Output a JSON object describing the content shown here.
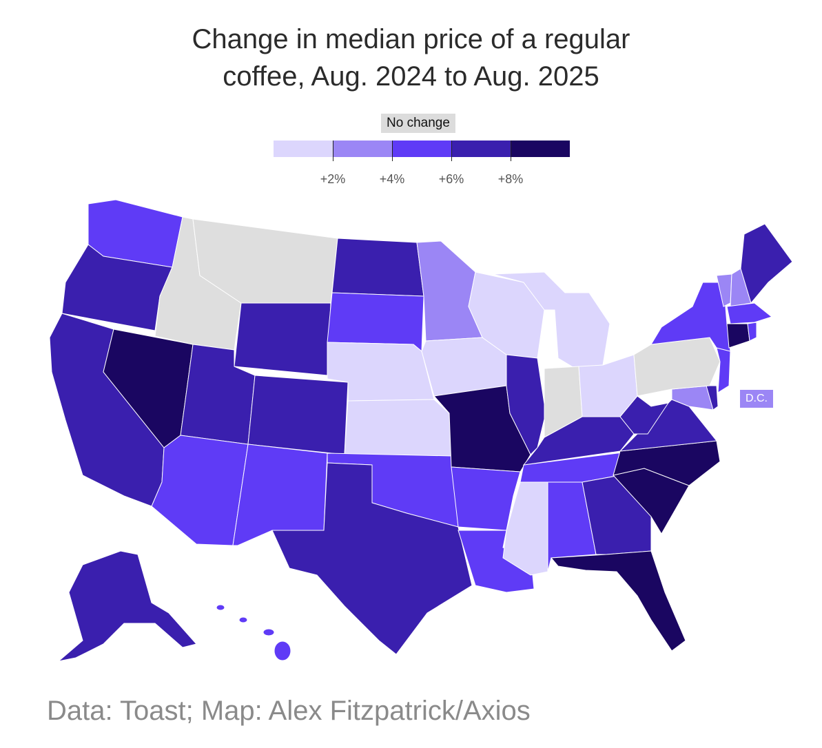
{
  "title": {
    "line1": "Change in median price of a regular",
    "line2": "coffee, Aug. 2024 to Aug. 2025"
  },
  "legend": {
    "no_change_label": "No change",
    "tick_labels": [
      "+2%",
      "+4%",
      "+6%",
      "+8%"
    ],
    "colors": [
      "#dcd6fd",
      "#9b86f5",
      "#5f3bf6",
      "#3a1fae",
      "#1a0661"
    ]
  },
  "colors": {
    "no_change": "#dedede",
    "bin0": "#dcd6fd",
    "bin1": "#9b86f5",
    "bin2": "#5f3bf6",
    "bin3": "#3a1fae",
    "bin4": "#1a0661"
  },
  "dc_label": "D.C.",
  "source": "Data: Toast; Map: Alex Fitzpatrick/Axios"
}
